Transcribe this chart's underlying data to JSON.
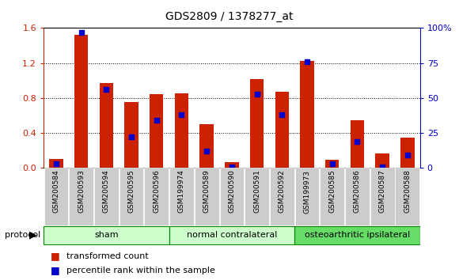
{
  "title": "GDS2809 / 1378277_at",
  "samples": [
    "GSM200584",
    "GSM200593",
    "GSM200594",
    "GSM200595",
    "GSM200596",
    "GSM199974",
    "GSM200589",
    "GSM200590",
    "GSM200591",
    "GSM200592",
    "GSM199973",
    "GSM200585",
    "GSM200586",
    "GSM200587",
    "GSM200588"
  ],
  "red_values": [
    0.1,
    1.52,
    0.97,
    0.75,
    0.84,
    0.85,
    0.5,
    0.07,
    1.02,
    0.87,
    1.22,
    0.09,
    0.55,
    0.17,
    0.35
  ],
  "blue_percentile": [
    3,
    97,
    56,
    22,
    34,
    38,
    12,
    1,
    53,
    38,
    76,
    3,
    19,
    1,
    9
  ],
  "groups": [
    {
      "label": "sham",
      "start": 0,
      "end": 5,
      "color": "#ccffcc"
    },
    {
      "label": "normal contralateral",
      "start": 5,
      "end": 10,
      "color": "#ccffcc"
    },
    {
      "label": "osteoarthritic ipsilateral",
      "start": 10,
      "end": 15,
      "color": "#66dd66"
    }
  ],
  "ylim_left": [
    0,
    1.6
  ],
  "ylim_right": [
    0,
    100
  ],
  "yticks_left": [
    0.0,
    0.4,
    0.8,
    1.2,
    1.6
  ],
  "yticks_right": [
    0,
    25,
    50,
    75,
    100
  ],
  "bar_color_red": "#cc2200",
  "bar_color_blue": "#0000cc",
  "bar_width": 0.55,
  "background_color": "#ffffff",
  "tick_label_color_left": "#cc2200",
  "tick_label_color_right": "#0000cc",
  "protocol_label": "protocol",
  "legend_red": "transformed count",
  "legend_blue": "percentile rank within the sample",
  "group_border_color": "#008800",
  "sample_box_color": "#cccccc"
}
